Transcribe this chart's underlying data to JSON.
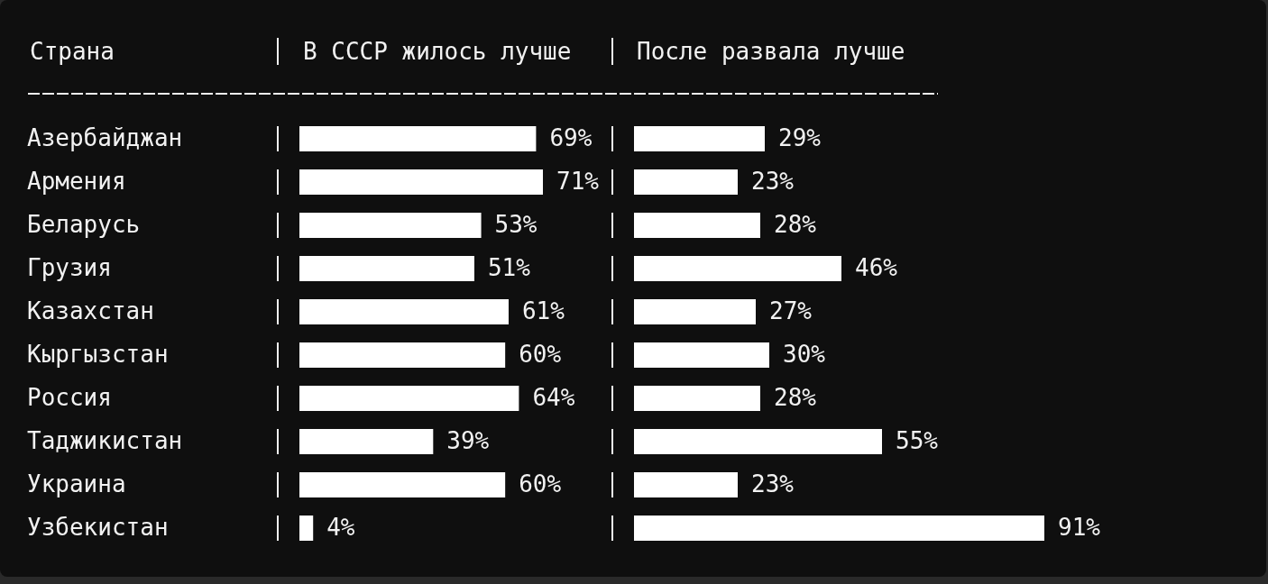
{
  "chart_data": [
    {
      "type": "bar",
      "orientation": "horizontal",
      "title": "В СССР жилось лучше",
      "ylabel": "Страна",
      "categories": [
        "Азербайджан",
        "Армения",
        "Беларусь",
        "Грузия",
        "Казахстан",
        "Кыргызстан",
        "Россия",
        "Таджикистан",
        "Украина",
        "Узбекистан"
      ],
      "values": [
        69,
        71,
        53,
        51,
        61,
        60,
        64,
        39,
        60,
        4
      ],
      "value_labels": [
        "69%",
        "71%",
        "53%",
        "51%",
        "61%",
        "60%",
        "64%",
        "39%",
        "60%",
        "4%"
      ],
      "color": "#ffffff"
    },
    {
      "type": "bar",
      "orientation": "horizontal",
      "title": "После развала лучше",
      "categories": [
        null,
        null,
        null,
        null,
        null,
        null,
        null,
        null,
        null,
        null
      ],
      "values": [
        29,
        23,
        28,
        46,
        27,
        30,
        28,
        55,
        23,
        91
      ],
      "value_labels": [
        "29%",
        "23%",
        "28%",
        "46%",
        "27%",
        "30%",
        "28%",
        "55%",
        "23%",
        "91%"
      ],
      "color": "#ffffff"
    }
  ]
}
